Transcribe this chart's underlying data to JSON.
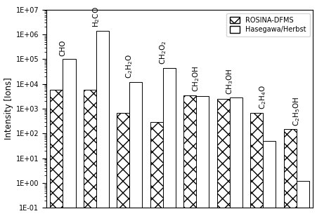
{
  "species_labels": [
    "CHO",
    "H$_2$CO",
    "C$_2$H$_2$O",
    "CH$_2$O$_2$",
    "CH$_2$OH",
    "CH$_3$OH",
    "C$_2$H$_4$O",
    "C$_2$H$_5$OH"
  ],
  "rosina": [
    6000,
    6000,
    700,
    300,
    3500,
    2500,
    700,
    150
  ],
  "hasegawa": [
    100000.0,
    1400000.0,
    12000.0,
    45000.0,
    3200,
    2800,
    50,
    1.2
  ],
  "ylabel": "Intensity [Ions]",
  "ylim_min": 0.1,
  "ylim_max": 10000000.0,
  "legend_labels": [
    "ROSINA-DFMS",
    "Hasegawa/Herbst"
  ],
  "bar_width": 0.38
}
